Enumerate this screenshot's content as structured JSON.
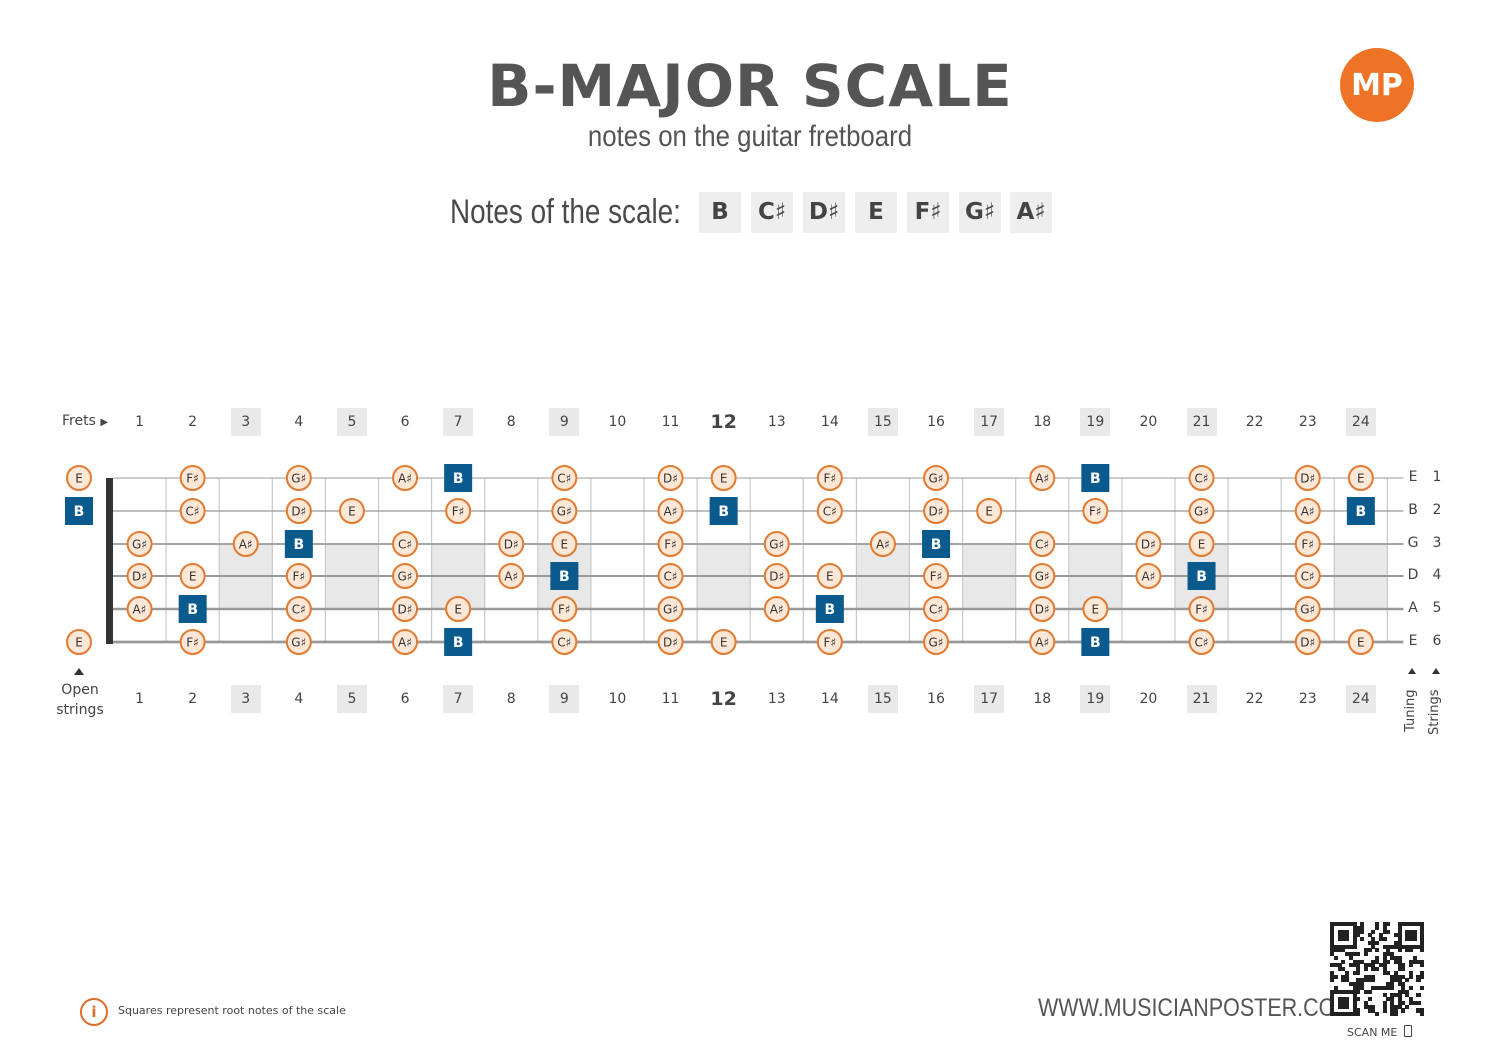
{
  "header": {
    "title": "B-MAJOR SCALE",
    "subtitle": "notes on the guitar fretboard",
    "logo_text": "MP",
    "logo_color": "#ee7326"
  },
  "scale": {
    "label": "Notes of the scale:",
    "notes": [
      "B",
      "C♯",
      "D♯",
      "E",
      "F♯",
      "G♯",
      "A♯"
    ]
  },
  "fretboard": {
    "frets_label": "Frets",
    "fret_numbers": [
      "1",
      "2",
      "3",
      "4",
      "5",
      "6",
      "7",
      "8",
      "9",
      "10",
      "11",
      "12",
      "13",
      "14",
      "15",
      "16",
      "17",
      "18",
      "19",
      "20",
      "21",
      "22",
      "23",
      "24"
    ],
    "marked_frets": [
      3,
      5,
      7,
      9,
      12,
      15,
      17,
      19,
      21,
      24
    ],
    "open_label_1": "Open",
    "open_label_2": "strings",
    "tuning_label": "Tuning",
    "strings_label": "Strings",
    "root_note": "B",
    "root_color": "#0b5a8e",
    "circle_fill": "#fde8d8",
    "circle_border": "#e27a30",
    "strings": [
      {
        "tuning": "E",
        "number": "1",
        "open": "E",
        "notes": {
          "2": "F♯",
          "4": "G♯",
          "6": "A♯",
          "7": "B",
          "9": "C♯",
          "11": "D♯",
          "12": "E",
          "14": "F♯",
          "16": "G♯",
          "18": "A♯",
          "19": "B",
          "21": "C♯",
          "23": "D♯",
          "24": "E"
        }
      },
      {
        "tuning": "B",
        "number": "2",
        "open": "B",
        "notes": {
          "2": "C♯",
          "4": "D♯",
          "5": "E",
          "7": "F♯",
          "9": "G♯",
          "11": "A♯",
          "12": "B",
          "14": "C♯",
          "16": "D♯",
          "17": "E",
          "19": "F♯",
          "21": "G♯",
          "23": "A♯",
          "24": "B"
        }
      },
      {
        "tuning": "G",
        "number": "3",
        "open": "",
        "notes": {
          "1": "G♯",
          "3": "A♯",
          "4": "B",
          "6": "C♯",
          "8": "D♯",
          "9": "E",
          "11": "F♯",
          "13": "G♯",
          "15": "A♯",
          "16": "B",
          "18": "C♯",
          "20": "D♯",
          "21": "E",
          "23": "F♯"
        }
      },
      {
        "tuning": "D",
        "number": "4",
        "open": "",
        "notes": {
          "1": "D♯",
          "2": "E",
          "4": "F♯",
          "6": "G♯",
          "8": "A♯",
          "9": "B",
          "11": "C♯",
          "13": "D♯",
          "14": "E",
          "16": "F♯",
          "18": "G♯",
          "20": "A♯",
          "21": "B",
          "23": "C♯"
        }
      },
      {
        "tuning": "A",
        "number": "5",
        "open": "",
        "notes": {
          "1": "A♯",
          "2": "B",
          "4": "C♯",
          "6": "D♯",
          "7": "E",
          "9": "F♯",
          "11": "G♯",
          "13": "A♯",
          "14": "B",
          "16": "C♯",
          "18": "D♯",
          "19": "E",
          "21": "F♯",
          "23": "G♯"
        }
      },
      {
        "tuning": "E",
        "number": "6",
        "open": "E",
        "notes": {
          "2": "F♯",
          "4": "G♯",
          "6": "A♯",
          "7": "B",
          "9": "C♯",
          "11": "D♯",
          "12": "E",
          "14": "F♯",
          "16": "G♯",
          "18": "A♯",
          "19": "B",
          "21": "C♯",
          "23": "D♯",
          "24": "E"
        }
      }
    ]
  },
  "footer": {
    "info_icon": "i",
    "info_text": "Squares represent root notes of the scale",
    "website": "WWW.MUSICIANPOSTER.COM",
    "scan_label": "SCAN ME"
  }
}
